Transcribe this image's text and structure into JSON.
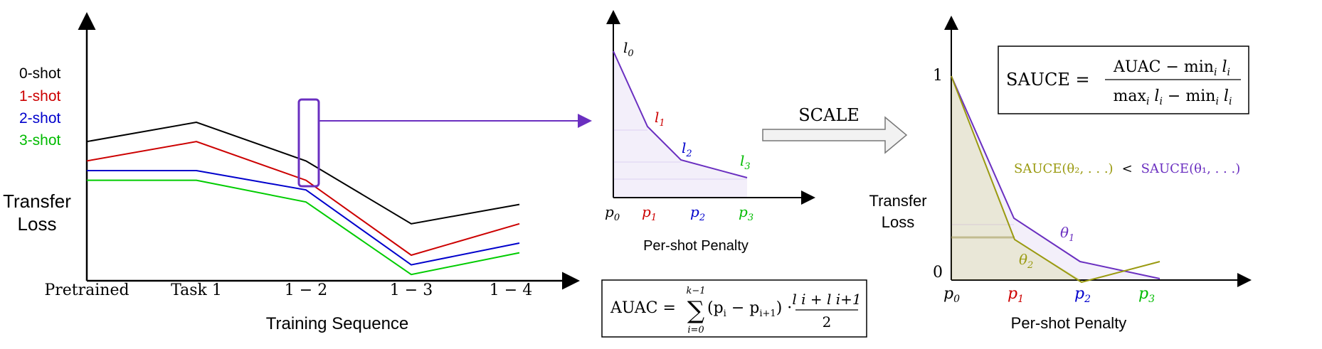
{
  "left_panel": {
    "y_label_line1": "Transfer",
    "y_label_line2": "Loss",
    "x_label": "Training Sequence",
    "x_ticks": [
      "Pretrained",
      "Task 1",
      "1 − 2",
      "1 − 3",
      "1 − 4"
    ],
    "series": [
      {
        "name": "0-shot",
        "color": "#000000",
        "values": [
          0.52,
          0.6,
          0.44,
          0.18,
          0.26
        ]
      },
      {
        "name": "1-shot",
        "color": "#cc0000",
        "values": [
          0.44,
          0.52,
          0.36,
          0.05,
          0.18
        ]
      },
      {
        "name": "2-shot",
        "color": "#0000cc",
        "values": [
          0.4,
          0.4,
          0.32,
          0.01,
          0.1
        ]
      },
      {
        "name": "3-shot",
        "color": "#00cc00",
        "values": [
          0.36,
          0.36,
          0.27,
          -0.03,
          0.06
        ]
      }
    ]
  },
  "middle_panel": {
    "x_label": "Per-shot Penalty",
    "points": [
      {
        "p": "p",
        "p_sub": "0",
        "l": "l",
        "l_sub": "0",
        "color": "#000000"
      },
      {
        "p": "p",
        "p_sub": "1",
        "l": "l",
        "l_sub": "1",
        "color": "#cc0000"
      },
      {
        "p": "p",
        "p_sub": "2",
        "l": "l",
        "l_sub": "2",
        "color": "#0000cc"
      },
      {
        "p": "p",
        "p_sub": "3",
        "l": "l",
        "l_sub": "3",
        "color": "#00bb00"
      }
    ],
    "formula": {
      "lhs": "AUAC =",
      "sum_upper": "k−1",
      "sum_lower": "i=0",
      "term": "(p",
      "term2": "i",
      "term3": " − p",
      "term4": "i+1",
      "term5": ") ·",
      "numerator": "l i + l i+1",
      "denominator": "2"
    },
    "curve_color": "#6a2fc0"
  },
  "scale_arrow": {
    "label": "SCALE"
  },
  "right_panel": {
    "y_label_line1": "Transfer",
    "y_label_line2": "Loss",
    "y_tick_top": "1",
    "y_tick_bottom": "0",
    "x_label": "Per-shot Penalty",
    "x_ticks": [
      {
        "p": "p",
        "sub": "0",
        "color": "#000000"
      },
      {
        "p": "p",
        "sub": "1",
        "color": "#cc0000"
      },
      {
        "p": "p",
        "sub": "2",
        "color": "#0000cc"
      },
      {
        "p": "p",
        "sub": "3",
        "color": "#00bb00"
      }
    ],
    "theta1_label": "θ",
    "theta1_sub": "1",
    "theta2_label": "θ",
    "theta2_sub": "2",
    "theta1_color": "#6a2fc0",
    "theta2_color": "#9a9a10",
    "comparison_left": "SAUCE(θ₂, . . .)",
    "comparison_op": "<",
    "comparison_right": "SAUCE(θ₁, . . .)",
    "formula": {
      "lhs": "SAUCE =",
      "numerator": "AUAC − min",
      "numerator_sub": "i",
      "numerator_tail": " l",
      "numerator_tail_sub": "i",
      "denominator": "max",
      "denominator_sub": "i",
      "denominator_mid": " l",
      "denominator_mid_sub": "i",
      "denominator_tail": " − min",
      "denominator_tail_sub": "i",
      "denominator_end": " l",
      "denominator_end_sub": "i"
    }
  }
}
